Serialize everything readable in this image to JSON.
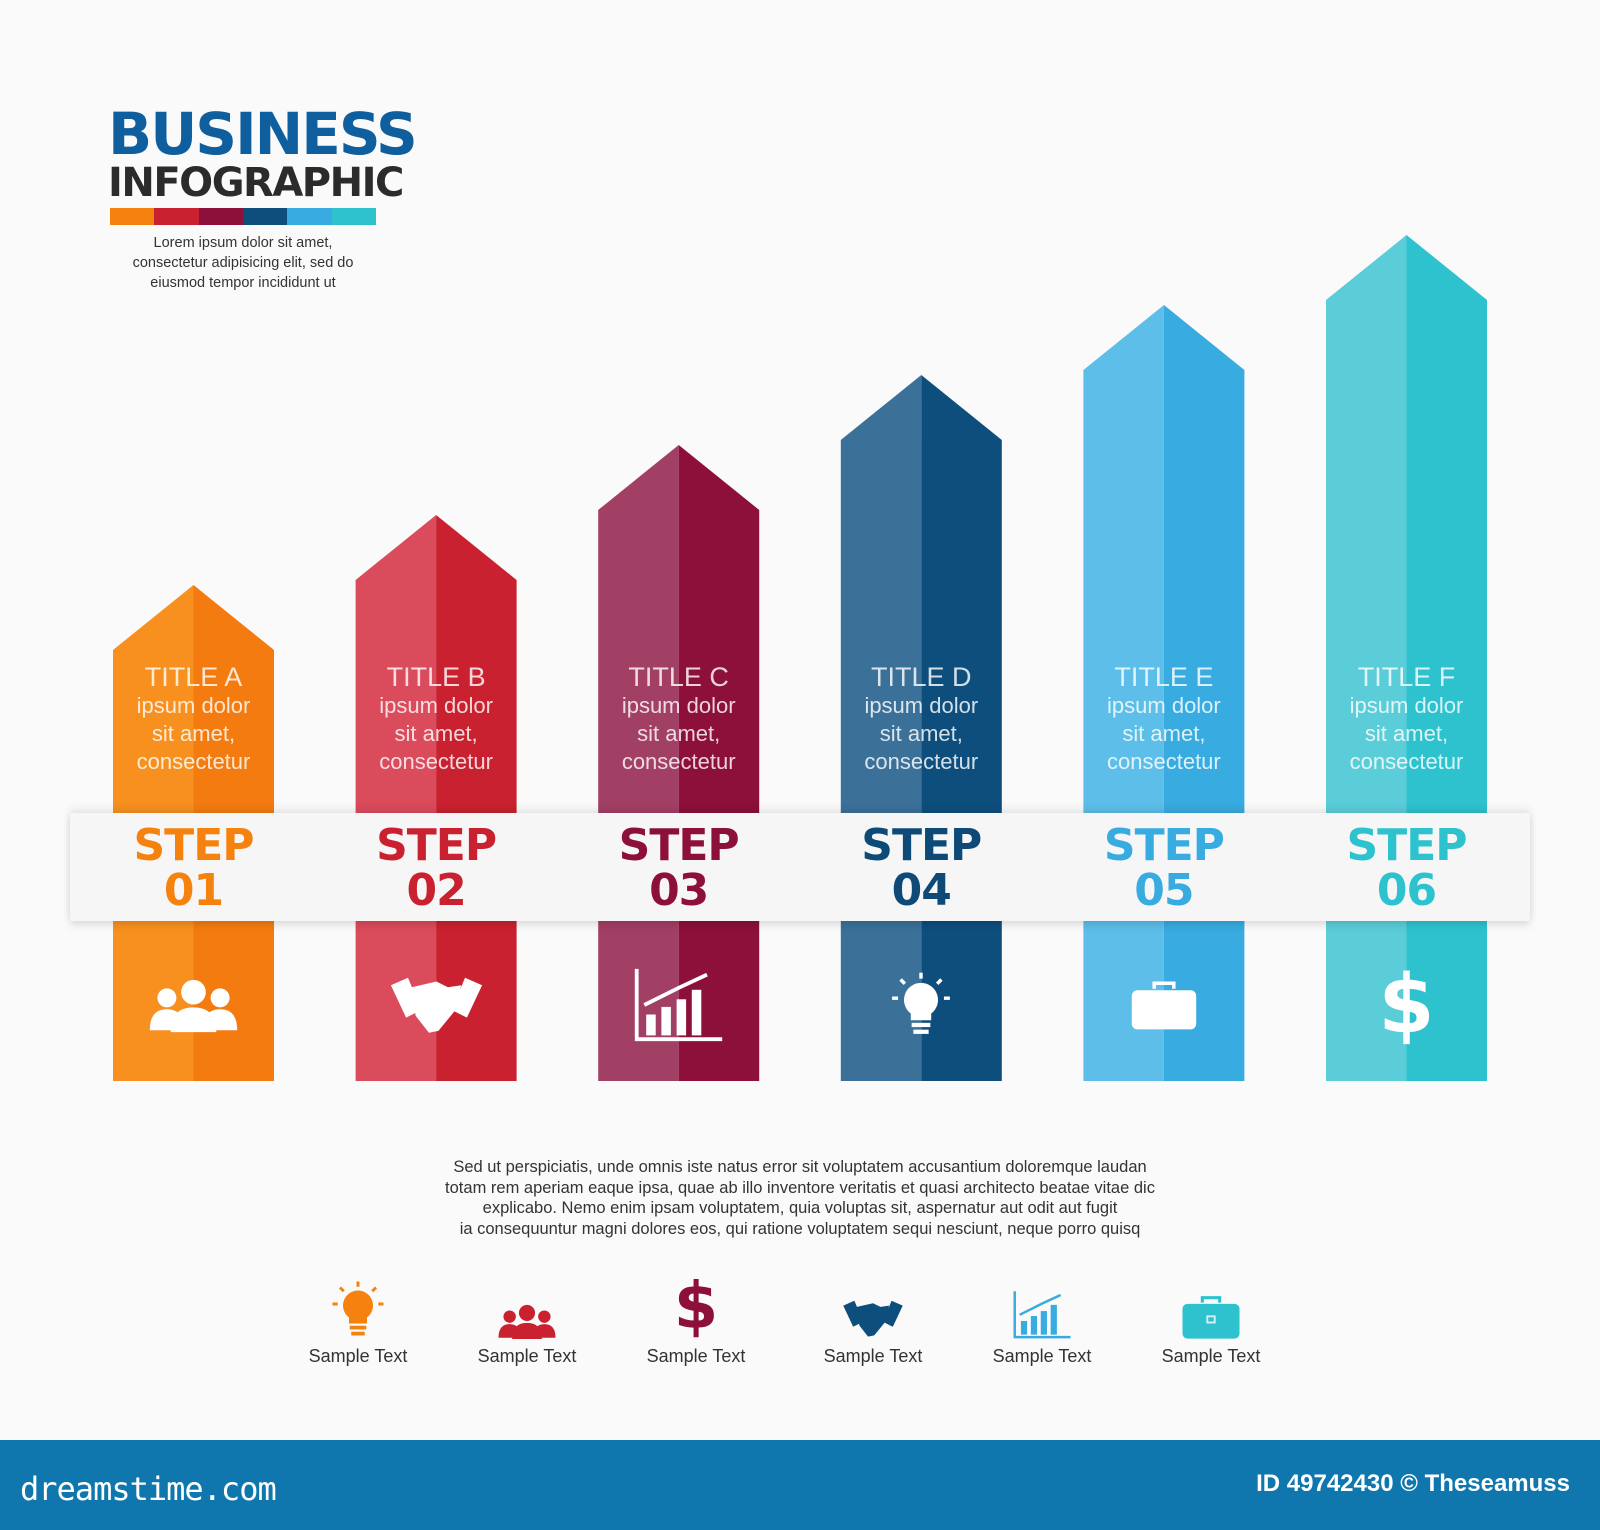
{
  "header": {
    "title_line1": "BUSINESS",
    "title_line2": "INFOGRAPHIC",
    "intro": [
      "Lorem ipsum dolor sit amet,",
      "consectetur adipisicing elit, sed do",
      "eiusmod tempor incididunt ut"
    ]
  },
  "steps": [
    {
      "title": "TITLE A",
      "desc": [
        "ipsum dolor",
        "sit amet,",
        "consectetur"
      ],
      "step": "STEP",
      "number": "01",
      "icon": "people-icon",
      "light": "#f7901f",
      "dark": "#f47b10",
      "text_color": "#f5820f"
    },
    {
      "title": "TITLE B",
      "desc": [
        "ipsum dolor",
        "sit amet,",
        "consectetur"
      ],
      "step": "STEP",
      "number": "02",
      "icon": "handshake-icon",
      "light": "#da4b5b",
      "dark": "#c9212f",
      "text_color": "#c9212f"
    },
    {
      "title": "TITLE C",
      "desc": [
        "ipsum dolor",
        "sit amet,",
        "consectetur"
      ],
      "step": "STEP",
      "number": "03",
      "icon": "growth-chart-icon",
      "light": "#a23f64",
      "dark": "#8c1039",
      "text_color": "#8c1039"
    },
    {
      "title": "TITLE D",
      "desc": [
        "ipsum dolor",
        "sit amet,",
        "consectetur"
      ],
      "step": "STEP",
      "number": "04",
      "icon": "lightbulb-icon",
      "light": "#3b7099",
      "dark": "#0e4e7d",
      "text_color": "#0e4a78"
    },
    {
      "title": "TITLE E",
      "desc": [
        "ipsum dolor",
        "sit amet,",
        "consectetur"
      ],
      "step": "STEP",
      "number": "05",
      "icon": "briefcase-icon",
      "light": "#5cbee9",
      "dark": "#38abe0",
      "text_color": "#38abe0"
    },
    {
      "title": "TITLE F",
      "desc": [
        "ipsum dolor",
        "sit amet,",
        "consectetur"
      ],
      "step": "STEP",
      "number": "06",
      "icon": "dollar-icon",
      "light": "#5acdd9",
      "dark": "#2ec2cf",
      "text_color": "#2ec2cf"
    }
  ],
  "paragraph": [
    "Sed ut perspiciatis, unde omnis iste natus error sit voluptatem accusantium doloremque laudan",
    "totam rem aperiam eaque ipsa, quae ab illo inventore veritatis et quasi architecto beatae vitae dic",
    "explicabo. Nemo enim ipsam voluptatem, quia voluptas sit, aspernatur aut odit aut fugit",
    "ia consequuntur magni dolores eos, qui ratione voluptatem sequi nesciunt, neque porro quisq"
  ],
  "legend": [
    {
      "icon": "lightbulb-icon",
      "label": "Sample Text",
      "color": "#f5820f"
    },
    {
      "icon": "people-icon",
      "label": "Sample Text",
      "color": "#c9212f"
    },
    {
      "icon": "dollar-icon",
      "label": "Sample Text",
      "color": "#8c1039"
    },
    {
      "icon": "handshake-icon",
      "label": "Sample Text",
      "color": "#0e4e7d"
    },
    {
      "icon": "growth-chart-icon",
      "label": "Sample Text",
      "color": "#38abe0"
    },
    {
      "icon": "briefcase-icon",
      "label": "Sample Text",
      "color": "#2ec2cf"
    }
  ],
  "footer": {
    "logo": "dreamstime.com",
    "credit": "ID 49742430 © Theseamuss",
    "background": "#0f77ae"
  }
}
